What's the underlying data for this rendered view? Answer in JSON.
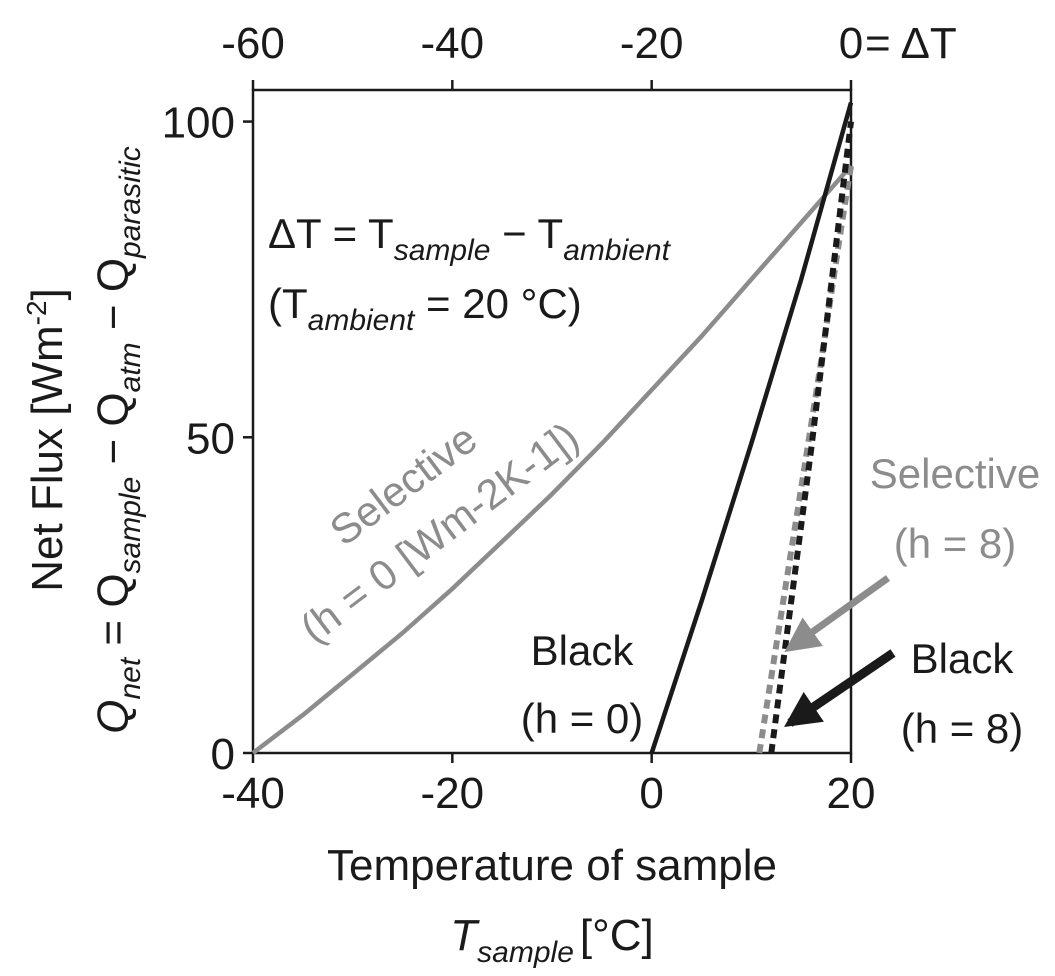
{
  "chart_data": {
    "type": "line",
    "xlabel": "Temperature of sample",
    "xlabel_symbol": "T",
    "xlabel_sub": "sample",
    "xlabel_unit": "[°C]",
    "ylabel_line1": "Net Flux [Wm",
    "ylabel_line1_sup": "-2",
    "ylabel_line1_end": "]",
    "ylabel_line2": {
      "q": "Q",
      "q_sub": "net",
      "eq": " = Q",
      "s_sub": "sample",
      "minus1": " − Q",
      "a_sub": "atm",
      "minus2": " − Q",
      "p_sub": "parasitic"
    },
    "xlim": [
      -40,
      20
    ],
    "ylim": [
      0,
      105
    ],
    "x_ticks": [
      "-40",
      "-20",
      "0",
      "20"
    ],
    "x_tick_values": [
      -40,
      -20,
      0,
      20
    ],
    "y_ticks": [
      "0",
      "50",
      "100"
    ],
    "y_tick_values": [
      0,
      50,
      100
    ],
    "top_ticks": [
      "-60",
      "-40",
      "-20",
      "0"
    ],
    "top_tick_values": [
      -60,
      -40,
      -20,
      0
    ],
    "top_axis_suffix": " = ΔT",
    "grid": false,
    "series": [
      {
        "name": "Selective (h = 0 [Wm-2K-1])",
        "color": "#8c8c8c",
        "dash": "solid",
        "x": [
          -40,
          -35,
          -30,
          -25,
          -20,
          -15,
          -10,
          -5,
          0,
          5,
          10,
          15,
          20
        ],
        "y": [
          0,
          6,
          12.5,
          19,
          26,
          33.5,
          41,
          49,
          57.5,
          66,
          75,
          84,
          93
        ]
      },
      {
        "name": "Black (h = 0)",
        "color": "#1a1a1a",
        "dash": "solid",
        "x": [
          0,
          5,
          10,
          15,
          20
        ],
        "y": [
          0,
          24,
          49,
          75,
          103
        ]
      },
      {
        "name": "Selective (h = 8)",
        "color": "#8c8c8c",
        "dash": "dashed",
        "x": [
          10.8,
          13,
          15,
          17,
          19,
          20
        ],
        "y": [
          0,
          22,
          42,
          62,
          83,
          93
        ]
      },
      {
        "name": "Black (h = 8)",
        "color": "#1a1a1a",
        "dash": "dashed",
        "x": [
          12,
          14,
          16,
          18,
          20
        ],
        "y": [
          0,
          24,
          48,
          74,
          100
        ]
      }
    ],
    "annotations": {
      "delta_def": {
        "dt": "ΔT",
        "eq": " = T",
        "sub1": "sample",
        "minus": " − T",
        "sub2": "ambient"
      },
      "ambient": {
        "open": "(T",
        "sub": "ambient",
        "rest": " = 20 °C)"
      },
      "selective_h0": {
        "line1": "Selective",
        "line2": "(h = 0 [Wm-2K-1])"
      },
      "black_h0": {
        "line1": "Black",
        "line2": "(h = 0)"
      },
      "selective_h8": {
        "line1": "Selective",
        "line2": "(h = 8)"
      },
      "black_h8": {
        "line1": "Black",
        "line2": "(h = 8)"
      }
    }
  }
}
